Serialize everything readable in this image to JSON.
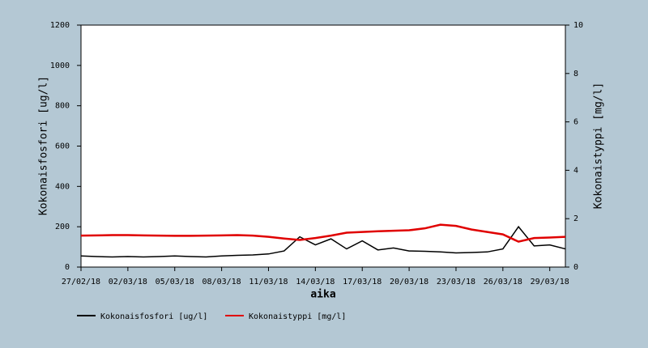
{
  "chart_data": {
    "type": "line",
    "xlabel": "aika",
    "ylabel": "Kokonaisfosfori [ug/l]",
    "y2label": "Kokonaistyppi [mg/l]",
    "x": [
      "2018-02-27",
      "2018-02-28",
      "2018-03-01",
      "2018-03-02",
      "2018-03-03",
      "2018-03-04",
      "2018-03-05",
      "2018-03-06",
      "2018-03-07",
      "2018-03-08",
      "2018-03-09",
      "2018-03-10",
      "2018-03-11",
      "2018-03-12",
      "2018-03-13",
      "2018-03-14",
      "2018-03-15",
      "2018-03-16",
      "2018-03-17",
      "2018-03-18",
      "2018-03-19",
      "2018-03-20",
      "2018-03-21",
      "2018-03-22",
      "2018-03-23",
      "2018-03-24",
      "2018-03-25",
      "2018-03-26",
      "2018-03-27",
      "2018-03-28",
      "2018-03-29",
      "2018-03-30"
    ],
    "series": [
      {
        "name": "Kokonaisfosfori [ug/l]",
        "color": "#000000",
        "axis": "y",
        "values": [
          55,
          52,
          50,
          52,
          50,
          52,
          55,
          52,
          50,
          55,
          58,
          60,
          65,
          80,
          150,
          110,
          140,
          90,
          130,
          85,
          95,
          80,
          78,
          75,
          70,
          72,
          75,
          90,
          200,
          105,
          110,
          90
        ]
      },
      {
        "name": "Kokonaistyppi [mg/l]",
        "color": "#e00000",
        "axis": "y2",
        "values": [
          1.3,
          1.31,
          1.32,
          1.32,
          1.31,
          1.3,
          1.29,
          1.29,
          1.3,
          1.31,
          1.32,
          1.3,
          1.25,
          1.18,
          1.12,
          1.2,
          1.3,
          1.42,
          1.45,
          1.48,
          1.5,
          1.52,
          1.6,
          1.75,
          1.7,
          1.55,
          1.45,
          1.35,
          1.05,
          1.2,
          1.22,
          1.25
        ]
      }
    ],
    "xlim": [
      "2018-02-27",
      "2018-03-30"
    ],
    "xticks": [
      {
        "value": "2018-02-27",
        "label": "27/02/18"
      },
      {
        "value": "2018-03-02",
        "label": "02/03/18"
      },
      {
        "value": "2018-03-05",
        "label": "05/03/18"
      },
      {
        "value": "2018-03-08",
        "label": "08/03/18"
      },
      {
        "value": "2018-03-11",
        "label": "11/03/18"
      },
      {
        "value": "2018-03-14",
        "label": "14/03/18"
      },
      {
        "value": "2018-03-17",
        "label": "17/03/18"
      },
      {
        "value": "2018-03-20",
        "label": "20/03/18"
      },
      {
        "value": "2018-03-23",
        "label": "23/03/18"
      },
      {
        "value": "2018-03-26",
        "label": "26/03/18"
      },
      {
        "value": "2018-03-29",
        "label": "29/03/18"
      }
    ],
    "ylim": [
      0,
      1200
    ],
    "yticks": [
      0,
      200,
      400,
      600,
      800,
      1000,
      1200
    ],
    "y2lim": [
      0,
      10
    ],
    "y2ticks": [
      0,
      2,
      4,
      6,
      8,
      10
    ]
  }
}
